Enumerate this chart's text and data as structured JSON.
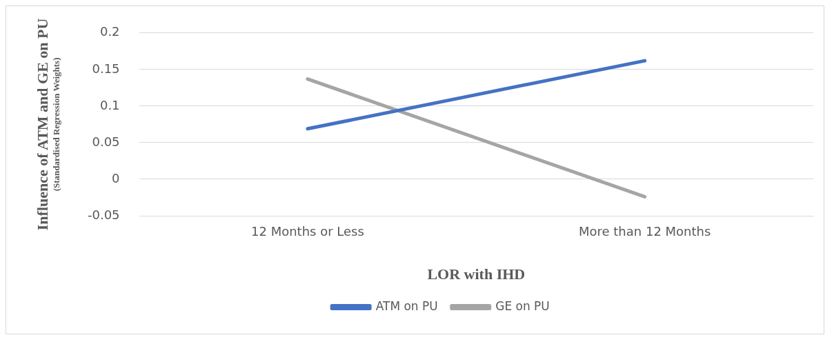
{
  "chart_data": {
    "type": "line",
    "xlabel": "LOR with IHD",
    "ylabel": "Influence of ATM and GE on PU\n(Standardised Regression Weights)",
    "categories": [
      "12 Months or Less",
      "More than 12 Months"
    ],
    "series": [
      {
        "name": "ATM on PU",
        "color": "#4472c4",
        "values": [
          0.069,
          0.162
        ]
      },
      {
        "name": "GE on PU",
        "color": "#a5a5a5",
        "values": [
          0.137,
          -0.024
        ]
      }
    ],
    "ylim": [
      -0.05,
      0.2
    ],
    "yticks": [
      -0.05,
      0,
      0.05,
      0.1,
      0.15,
      0.2
    ],
    "grid": "y",
    "legend": "bottom",
    "marker": "none",
    "line_style": "solid"
  }
}
